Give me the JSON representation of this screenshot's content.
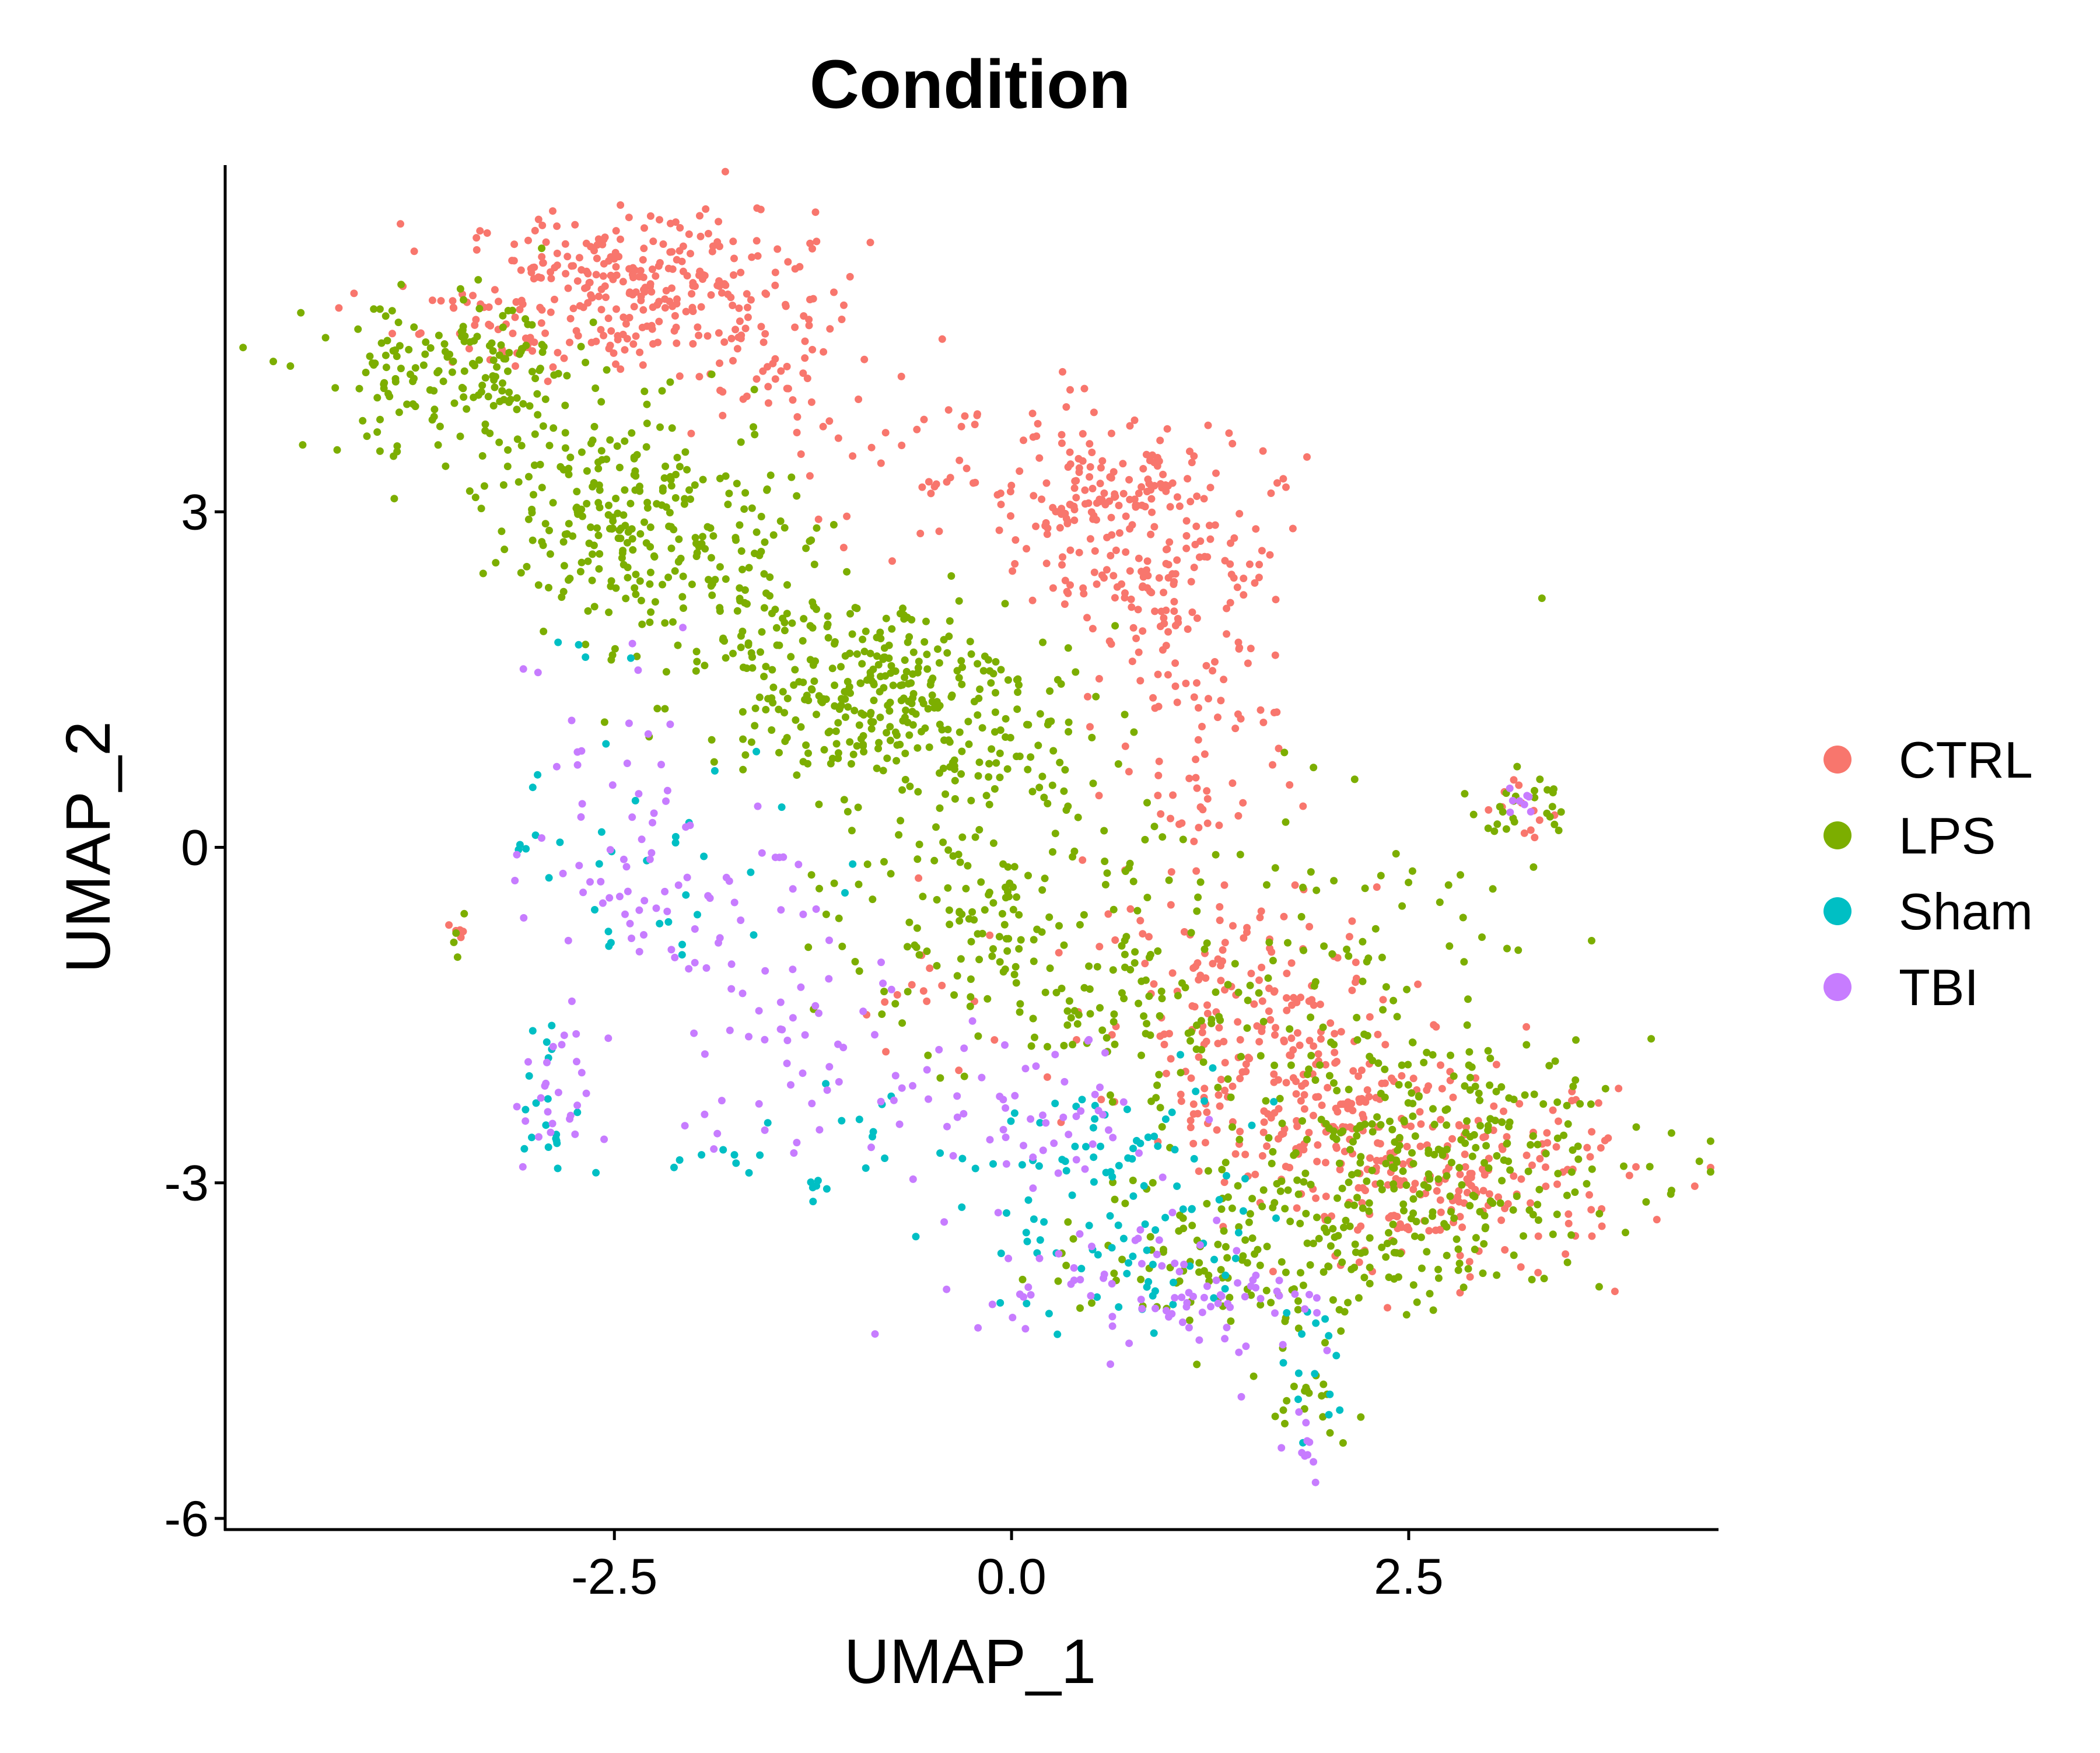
{
  "chart_data": {
    "type": "scatter",
    "title": "Condition",
    "xlabel": "UMAP_1",
    "ylabel": "UMAP_2",
    "xlim": [
      -4.95,
      4.45
    ],
    "ylim": [
      -6.1,
      6.1
    ],
    "x_ticks": [
      -2.5,
      0.0,
      2.5
    ],
    "x_tick_labels": [
      "-2.5",
      "0.0",
      "2.5"
    ],
    "y_ticks": [
      -6,
      -3,
      0,
      3
    ],
    "y_tick_labels": [
      "-6",
      "-3",
      "0",
      "3"
    ],
    "grid": false,
    "legend": {
      "position": "right",
      "entries": [
        "CTRL",
        "LPS",
        "Sham",
        "TBI"
      ]
    },
    "series": [
      {
        "name": "CTRL",
        "color": "#F8766D",
        "clusters": [
          {
            "cx": -2.35,
            "cy": 5.0,
            "sx": 0.55,
            "sy": 0.35,
            "n": 300
          },
          {
            "cx": -1.6,
            "cy": 4.3,
            "sx": 0.3,
            "sy": 0.3,
            "n": 40
          },
          {
            "cx": -3.4,
            "cy": 4.6,
            "sx": 0.35,
            "sy": 0.25,
            "n": 25
          },
          {
            "cx": 0.55,
            "cy": 3.2,
            "sx": 0.45,
            "sy": 0.3,
            "n": 150
          },
          {
            "cx": 0.95,
            "cy": 2.4,
            "sx": 0.4,
            "sy": 0.35,
            "n": 120
          },
          {
            "cx": 1.05,
            "cy": 1.3,
            "sx": 0.3,
            "sy": 0.35,
            "n": 50
          },
          {
            "cx": -0.5,
            "cy": 3.5,
            "sx": 0.6,
            "sy": 0.5,
            "n": 40
          },
          {
            "cx": 1.2,
            "cy": 0.4,
            "sx": 0.3,
            "sy": 0.25,
            "n": 25
          },
          {
            "cx": 1.5,
            "cy": -1.4,
            "sx": 0.5,
            "sy": 0.6,
            "n": 160
          },
          {
            "cx": 2.0,
            "cy": -2.3,
            "sx": 0.5,
            "sy": 0.4,
            "n": 140
          },
          {
            "cx": 2.8,
            "cy": -3.0,
            "sx": 0.55,
            "sy": 0.4,
            "n": 200
          },
          {
            "cx": 3.2,
            "cy": 0.4,
            "sx": 0.12,
            "sy": 0.15,
            "n": 12
          },
          {
            "cx": -3.5,
            "cy": -0.75,
            "sx": 0.03,
            "sy": 0.04,
            "n": 5
          },
          {
            "cx": -0.5,
            "cy": -1.4,
            "sx": 0.3,
            "sy": 0.4,
            "n": 15
          }
        ]
      },
      {
        "name": "LPS",
        "color": "#7CAE00",
        "clusters": [
          {
            "cx": -3.5,
            "cy": 4.2,
            "sx": 0.45,
            "sy": 0.35,
            "n": 170
          },
          {
            "cx": -2.35,
            "cy": 3.0,
            "sx": 0.5,
            "sy": 0.45,
            "n": 240
          },
          {
            "cx": -1.9,
            "cy": 2.2,
            "sx": 0.4,
            "sy": 0.4,
            "n": 60
          },
          {
            "cx": -1.0,
            "cy": 1.5,
            "sx": 0.5,
            "sy": 0.4,
            "n": 260
          },
          {
            "cx": -0.3,
            "cy": 0.9,
            "sx": 0.5,
            "sy": 0.5,
            "n": 120
          },
          {
            "cx": -0.1,
            "cy": -0.6,
            "sx": 0.5,
            "sy": 0.6,
            "n": 150
          },
          {
            "cx": 0.6,
            "cy": -1.4,
            "sx": 0.4,
            "sy": 0.4,
            "n": 60
          },
          {
            "cx": 2.0,
            "cy": -1.2,
            "sx": 0.7,
            "sy": 0.8,
            "n": 120
          },
          {
            "cx": 2.6,
            "cy": -2.8,
            "sx": 0.7,
            "sy": 0.5,
            "n": 260
          },
          {
            "cx": 1.7,
            "cy": -3.6,
            "sx": 0.6,
            "sy": 0.4,
            "n": 160
          },
          {
            "cx": 3.2,
            "cy": 0.35,
            "sx": 0.15,
            "sy": 0.15,
            "n": 25
          },
          {
            "cx": 1.9,
            "cy": -4.9,
            "sx": 0.15,
            "sy": 0.25,
            "n": 20
          },
          {
            "cx": -3.5,
            "cy": -0.55,
            "sx": 0.03,
            "sy": 0.2,
            "n": 4
          }
        ]
      },
      {
        "name": "Sham",
        "color": "#00BFC4",
        "clusters": [
          {
            "cx": -2.1,
            "cy": -0.2,
            "sx": 0.6,
            "sy": 0.5,
            "n": 35
          },
          {
            "cx": -2.9,
            "cy": -2.3,
            "sx": 0.12,
            "sy": 0.35,
            "n": 20
          },
          {
            "cx": -1.9,
            "cy": -2.8,
            "sx": 0.25,
            "sy": 0.1,
            "n": 8
          },
          {
            "cx": -1.2,
            "cy": -3.0,
            "sx": 0.1,
            "sy": 0.1,
            "n": 6
          },
          {
            "cx": -0.8,
            "cy": -2.5,
            "sx": 0.25,
            "sy": 0.2,
            "n": 10
          },
          {
            "cx": 0.6,
            "cy": -2.8,
            "sx": 0.55,
            "sy": 0.4,
            "n": 70
          },
          {
            "cx": 0.8,
            "cy": -3.8,
            "sx": 0.4,
            "sy": 0.3,
            "n": 40
          },
          {
            "cx": 1.9,
            "cy": -4.7,
            "sx": 0.15,
            "sy": 0.3,
            "n": 15
          },
          {
            "cx": -2.7,
            "cy": 1.8,
            "sx": 0.1,
            "sy": 0.08,
            "n": 4
          }
        ]
      },
      {
        "name": "TBI",
        "color": "#C77CFF",
        "clusters": [
          {
            "cx": -2.5,
            "cy": 0.2,
            "sx": 0.3,
            "sy": 0.8,
            "n": 40
          },
          {
            "cx": -1.9,
            "cy": -0.6,
            "sx": 0.5,
            "sy": 0.4,
            "n": 45
          },
          {
            "cx": -1.6,
            "cy": -1.7,
            "sx": 0.4,
            "sy": 0.4,
            "n": 30
          },
          {
            "cx": -2.9,
            "cy": -2.3,
            "sx": 0.12,
            "sy": 0.3,
            "n": 25
          },
          {
            "cx": -1.1,
            "cy": -2.4,
            "sx": 0.4,
            "sy": 0.3,
            "n": 25
          },
          {
            "cx": 0.2,
            "cy": -2.4,
            "sx": 0.5,
            "sy": 0.4,
            "n": 50
          },
          {
            "cx": 0.8,
            "cy": -3.9,
            "sx": 0.5,
            "sy": 0.3,
            "n": 70
          },
          {
            "cx": 1.6,
            "cy": -4.2,
            "sx": 0.3,
            "sy": 0.3,
            "n": 20
          },
          {
            "cx": 1.8,
            "cy": -5.3,
            "sx": 0.1,
            "sy": 0.2,
            "n": 10
          },
          {
            "cx": 3.2,
            "cy": 0.4,
            "sx": 0.08,
            "sy": 0.12,
            "n": 8
          },
          {
            "cx": -3.05,
            "cy": 1.65,
            "sx": 0.05,
            "sy": 0.05,
            "n": 2
          }
        ]
      }
    ]
  }
}
